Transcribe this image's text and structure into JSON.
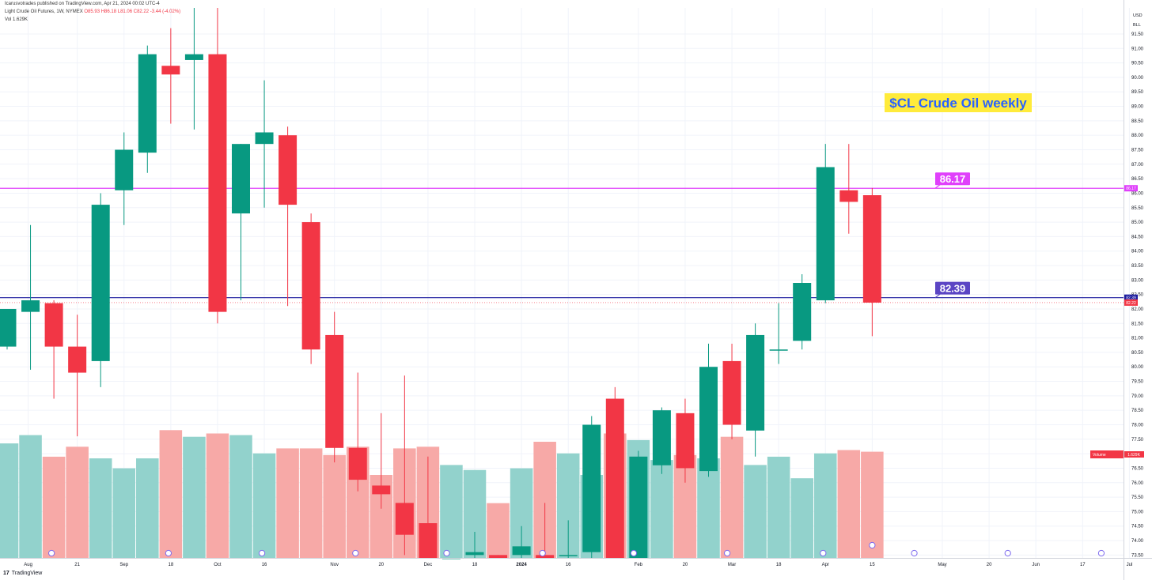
{
  "header": {
    "publisher": "Icarusvotrades published on TradingView.com, Apr 21, 2024 00:02 UTC-4",
    "symbol": "Light Crude Oil Futures, 1W, NYMEX",
    "ohlc": "O85.93 H86.18 L81.06 C82.22 -3.44 (-4.02%)",
    "vol": "Vol 1.629K",
    "right_top": "USD",
    "right_top2": "BLL"
  },
  "footer": {
    "brand": "TradingView",
    "logo": "17"
  },
  "annotation": {
    "title": "$CL Crude Oil weekly"
  },
  "colors": {
    "up": "#089981",
    "down": "#f23645",
    "vol_up": "#92d2cc",
    "vol_down": "#f7a9a7",
    "line_pink": "#e040fb",
    "line_navy": "#1a1a9e",
    "label_pink": "#e040fb",
    "label_purple": "#5b45c4",
    "title_bg": "#ffeb3b",
    "title_fg": "#2962ff"
  },
  "chart_data": {
    "type": "candlestick",
    "title": "$CL Crude Oil weekly",
    "series_name": "Light Crude Oil Futures, 1W, NYMEX",
    "ylim": [
      73.4,
      92.4
    ],
    "y_ticks": [
      "91.50",
      "91.00",
      "90.50",
      "90.00",
      "89.50",
      "89.00",
      "88.50",
      "88.00",
      "87.50",
      "87.00",
      "86.50",
      "86.00",
      "85.50",
      "85.00",
      "84.50",
      "84.00",
      "83.50",
      "83.00",
      "82.50",
      "82.00",
      "81.50",
      "81.00",
      "80.50",
      "80.00",
      "79.50",
      "79.00",
      "78.50",
      "78.00",
      "77.50",
      "77.00",
      "76.50",
      "76.00",
      "75.50",
      "75.00",
      "74.50",
      "74.00",
      "73.50"
    ],
    "x_ticks": [
      "Aug",
      "21",
      "Sep",
      "18",
      "Oct",
      "16",
      "Nov",
      "20",
      "Dec",
      "18",
      "2024",
      "16",
      "Feb",
      "20",
      "Mar",
      "18",
      "Apr",
      "15",
      "May",
      "20",
      "Jun",
      "17",
      "Jul"
    ],
    "x_tick_slots": [
      0.9,
      3,
      5,
      7,
      9,
      11,
      14,
      16,
      18,
      20,
      22,
      24,
      27,
      29,
      31,
      33,
      35,
      37,
      40,
      42,
      44,
      46,
      48
    ],
    "horizontal_levels": [
      {
        "value": 86.17,
        "label": "86.17",
        "color": "pink"
      },
      {
        "value": 82.39,
        "label": "82.39",
        "color": "navy"
      }
    ],
    "axis_badges": [
      {
        "value": 86.17,
        "label": "86.17",
        "color": "pink"
      },
      {
        "value": 82.39,
        "label": "82.39",
        "color": "navy"
      },
      {
        "value": 82.22,
        "label": "82.22",
        "color": "red"
      }
    ],
    "volume_label": "Volume",
    "volume_value": "1.629K",
    "candles": [
      {
        "o": 80.7,
        "h": 82.0,
        "l": 80.6,
        "c": 82.0
      },
      {
        "o": 81.9,
        "h": 84.9,
        "l": 79.9,
        "c": 82.3
      },
      {
        "o": 82.2,
        "h": 82.3,
        "l": 78.9,
        "c": 80.7
      },
      {
        "o": 80.7,
        "h": 81.8,
        "l": 77.6,
        "c": 79.8
      },
      {
        "o": 80.2,
        "h": 86.0,
        "l": 79.3,
        "c": 85.6
      },
      {
        "o": 86.1,
        "h": 88.1,
        "l": 84.9,
        "c": 87.5
      },
      {
        "o": 87.4,
        "h": 91.1,
        "l": 86.7,
        "c": 90.8
      },
      {
        "o": 90.4,
        "h": 91.7,
        "l": 88.4,
        "c": 90.1
      },
      {
        "o": 90.6,
        "h": 92.4,
        "l": 88.2,
        "c": 90.8
      },
      {
        "o": 90.8,
        "h": 92.4,
        "l": 81.5,
        "c": 81.9
      },
      {
        "o": 85.3,
        "h": 87.7,
        "l": 82.3,
        "c": 87.7
      },
      {
        "o": 87.7,
        "h": 89.9,
        "l": 85.5,
        "c": 88.1
      },
      {
        "o": 88.0,
        "h": 88.3,
        "l": 82.1,
        "c": 85.6
      },
      {
        "o": 85.0,
        "h": 85.3,
        "l": 80.1,
        "c": 80.6
      },
      {
        "o": 81.1,
        "h": 81.9,
        "l": 76.7,
        "c": 77.2
      },
      {
        "o": 77.2,
        "h": 79.8,
        "l": 75.7,
        "c": 76.1
      },
      {
        "o": 75.9,
        "h": 78.4,
        "l": 75.1,
        "c": 75.6
      },
      {
        "o": 75.3,
        "h": 79.7,
        "l": 73.5,
        "c": 74.2
      },
      {
        "o": 74.6,
        "h": 76.9,
        "l": 73.4,
        "c": 73.4
      },
      {
        "o": 73.4,
        "h": 73.4,
        "l": 73.4,
        "c": 73.4
      },
      {
        "o": 73.5,
        "h": 74.3,
        "l": 73.4,
        "c": 73.6
      },
      {
        "o": 73.5,
        "h": 73.5,
        "l": 73.4,
        "c": 73.4
      },
      {
        "o": 73.5,
        "h": 74.5,
        "l": 73.4,
        "c": 73.8
      },
      {
        "o": 73.5,
        "h": 75.3,
        "l": 73.4,
        "c": 73.4
      },
      {
        "o": 73.5,
        "h": 74.7,
        "l": 73.4,
        "c": 73.5
      },
      {
        "o": 73.6,
        "h": 78.3,
        "l": 73.4,
        "c": 78.0
      },
      {
        "o": 78.9,
        "h": 79.3,
        "l": 73.4,
        "c": 73.4
      },
      {
        "o": 73.4,
        "h": 77.1,
        "l": 73.4,
        "c": 76.9
      },
      {
        "o": 76.6,
        "h": 78.6,
        "l": 76.3,
        "c": 78.5
      },
      {
        "o": 78.4,
        "h": 78.9,
        "l": 76.0,
        "c": 76.5
      },
      {
        "o": 76.4,
        "h": 80.8,
        "l": 76.2,
        "c": 80.0
      },
      {
        "o": 80.2,
        "h": 80.8,
        "l": 77.5,
        "c": 78.0
      },
      {
        "o": 77.8,
        "h": 81.5,
        "l": 76.9,
        "c": 81.1
      },
      {
        "o": 80.6,
        "h": 82.2,
        "l": 80.1,
        "c": 80.6
      },
      {
        "o": 80.9,
        "h": 83.2,
        "l": 80.6,
        "c": 82.9
      },
      {
        "o": 82.3,
        "h": 87.7,
        "l": 82.2,
        "c": 86.9
      },
      {
        "o": 86.1,
        "h": 87.7,
        "l": 84.6,
        "c": 85.7
      },
      {
        "o": 85.93,
        "h": 86.18,
        "l": 81.06,
        "c": 82.22
      }
    ],
    "volume_levels": [
      0.69,
      0.74,
      0.61,
      0.67,
      0.6,
      0.54,
      0.6,
      0.77,
      0.73,
      0.75,
      0.74,
      0.63,
      0.66,
      0.66,
      0.62,
      0.67,
      0.5,
      0.66,
      0.67,
      0.56,
      0.53,
      0.33,
      0.54,
      0.7,
      0.63,
      0.5,
      0.75,
      0.71,
      0.59,
      0.62,
      0.6,
      0.73,
      0.56,
      0.61,
      0.48,
      0.63,
      0.65,
      0.64
    ]
  }
}
